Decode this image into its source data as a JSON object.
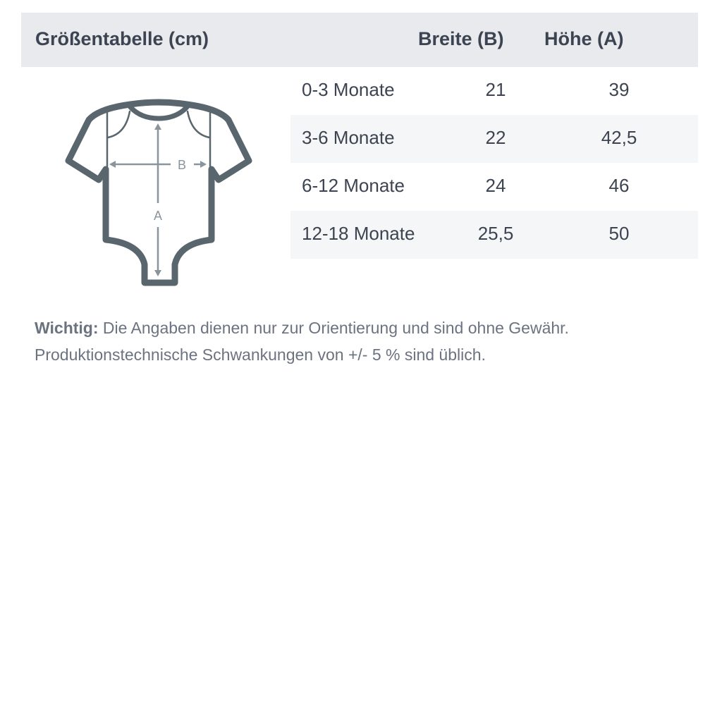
{
  "header": {
    "title": "Größentabelle (cm)",
    "col_width": "Breite (B)",
    "col_height": "Höhe (A)"
  },
  "rows": [
    {
      "size": "0-3 Monate",
      "width": "21",
      "height": "39"
    },
    {
      "size": "3-6 Monate",
      "width": "22",
      "height": "42,5"
    },
    {
      "size": "6-12 Monate",
      "width": "24",
      "height": "46"
    },
    {
      "size": "12-18 Monate",
      "width": "25,5",
      "height": "50"
    }
  ],
  "figure": {
    "icon": "baby-bodysuit-icon",
    "label_b": "B",
    "label_a": "A",
    "outline_color": "#5a666e",
    "arrow_color": "#8a949c"
  },
  "note": {
    "label": "Wichtig:",
    "line1": "Die Angaben dienen nur zur Orientierung und sind ohne Gewähr.",
    "line2": "Produktionstechnische Schwankungen von +/- 5 % sind üblich."
  }
}
